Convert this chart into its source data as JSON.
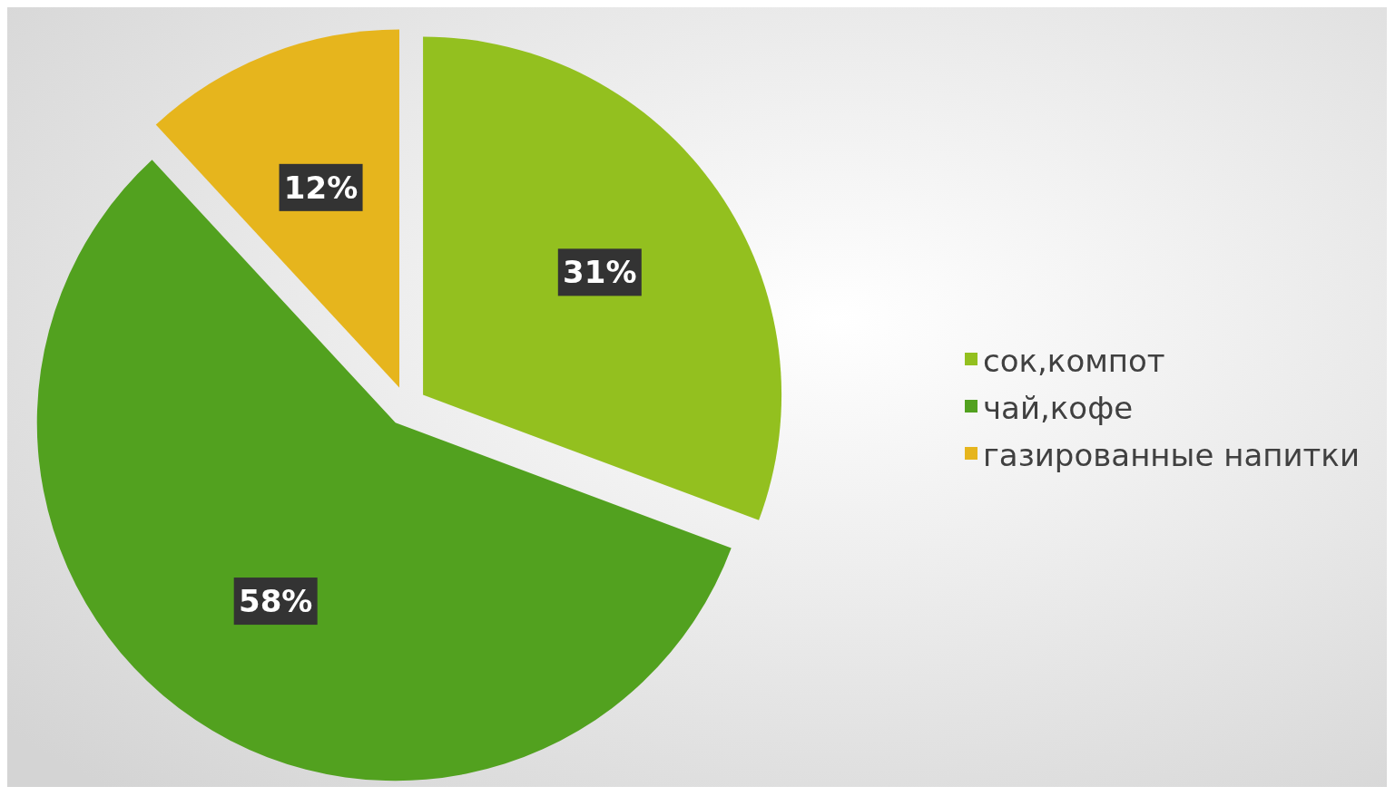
{
  "chart_data": {
    "type": "pie",
    "categories": [
      "сок,компот",
      "чай,кофе",
      "газированные напитки"
    ],
    "values": [
      31,
      58,
      12
    ],
    "colors": [
      "#93c01f",
      "#52a11f",
      "#e6b51d"
    ],
    "value_labels": [
      "31%",
      "58%",
      "12%"
    ],
    "legend": "right"
  }
}
